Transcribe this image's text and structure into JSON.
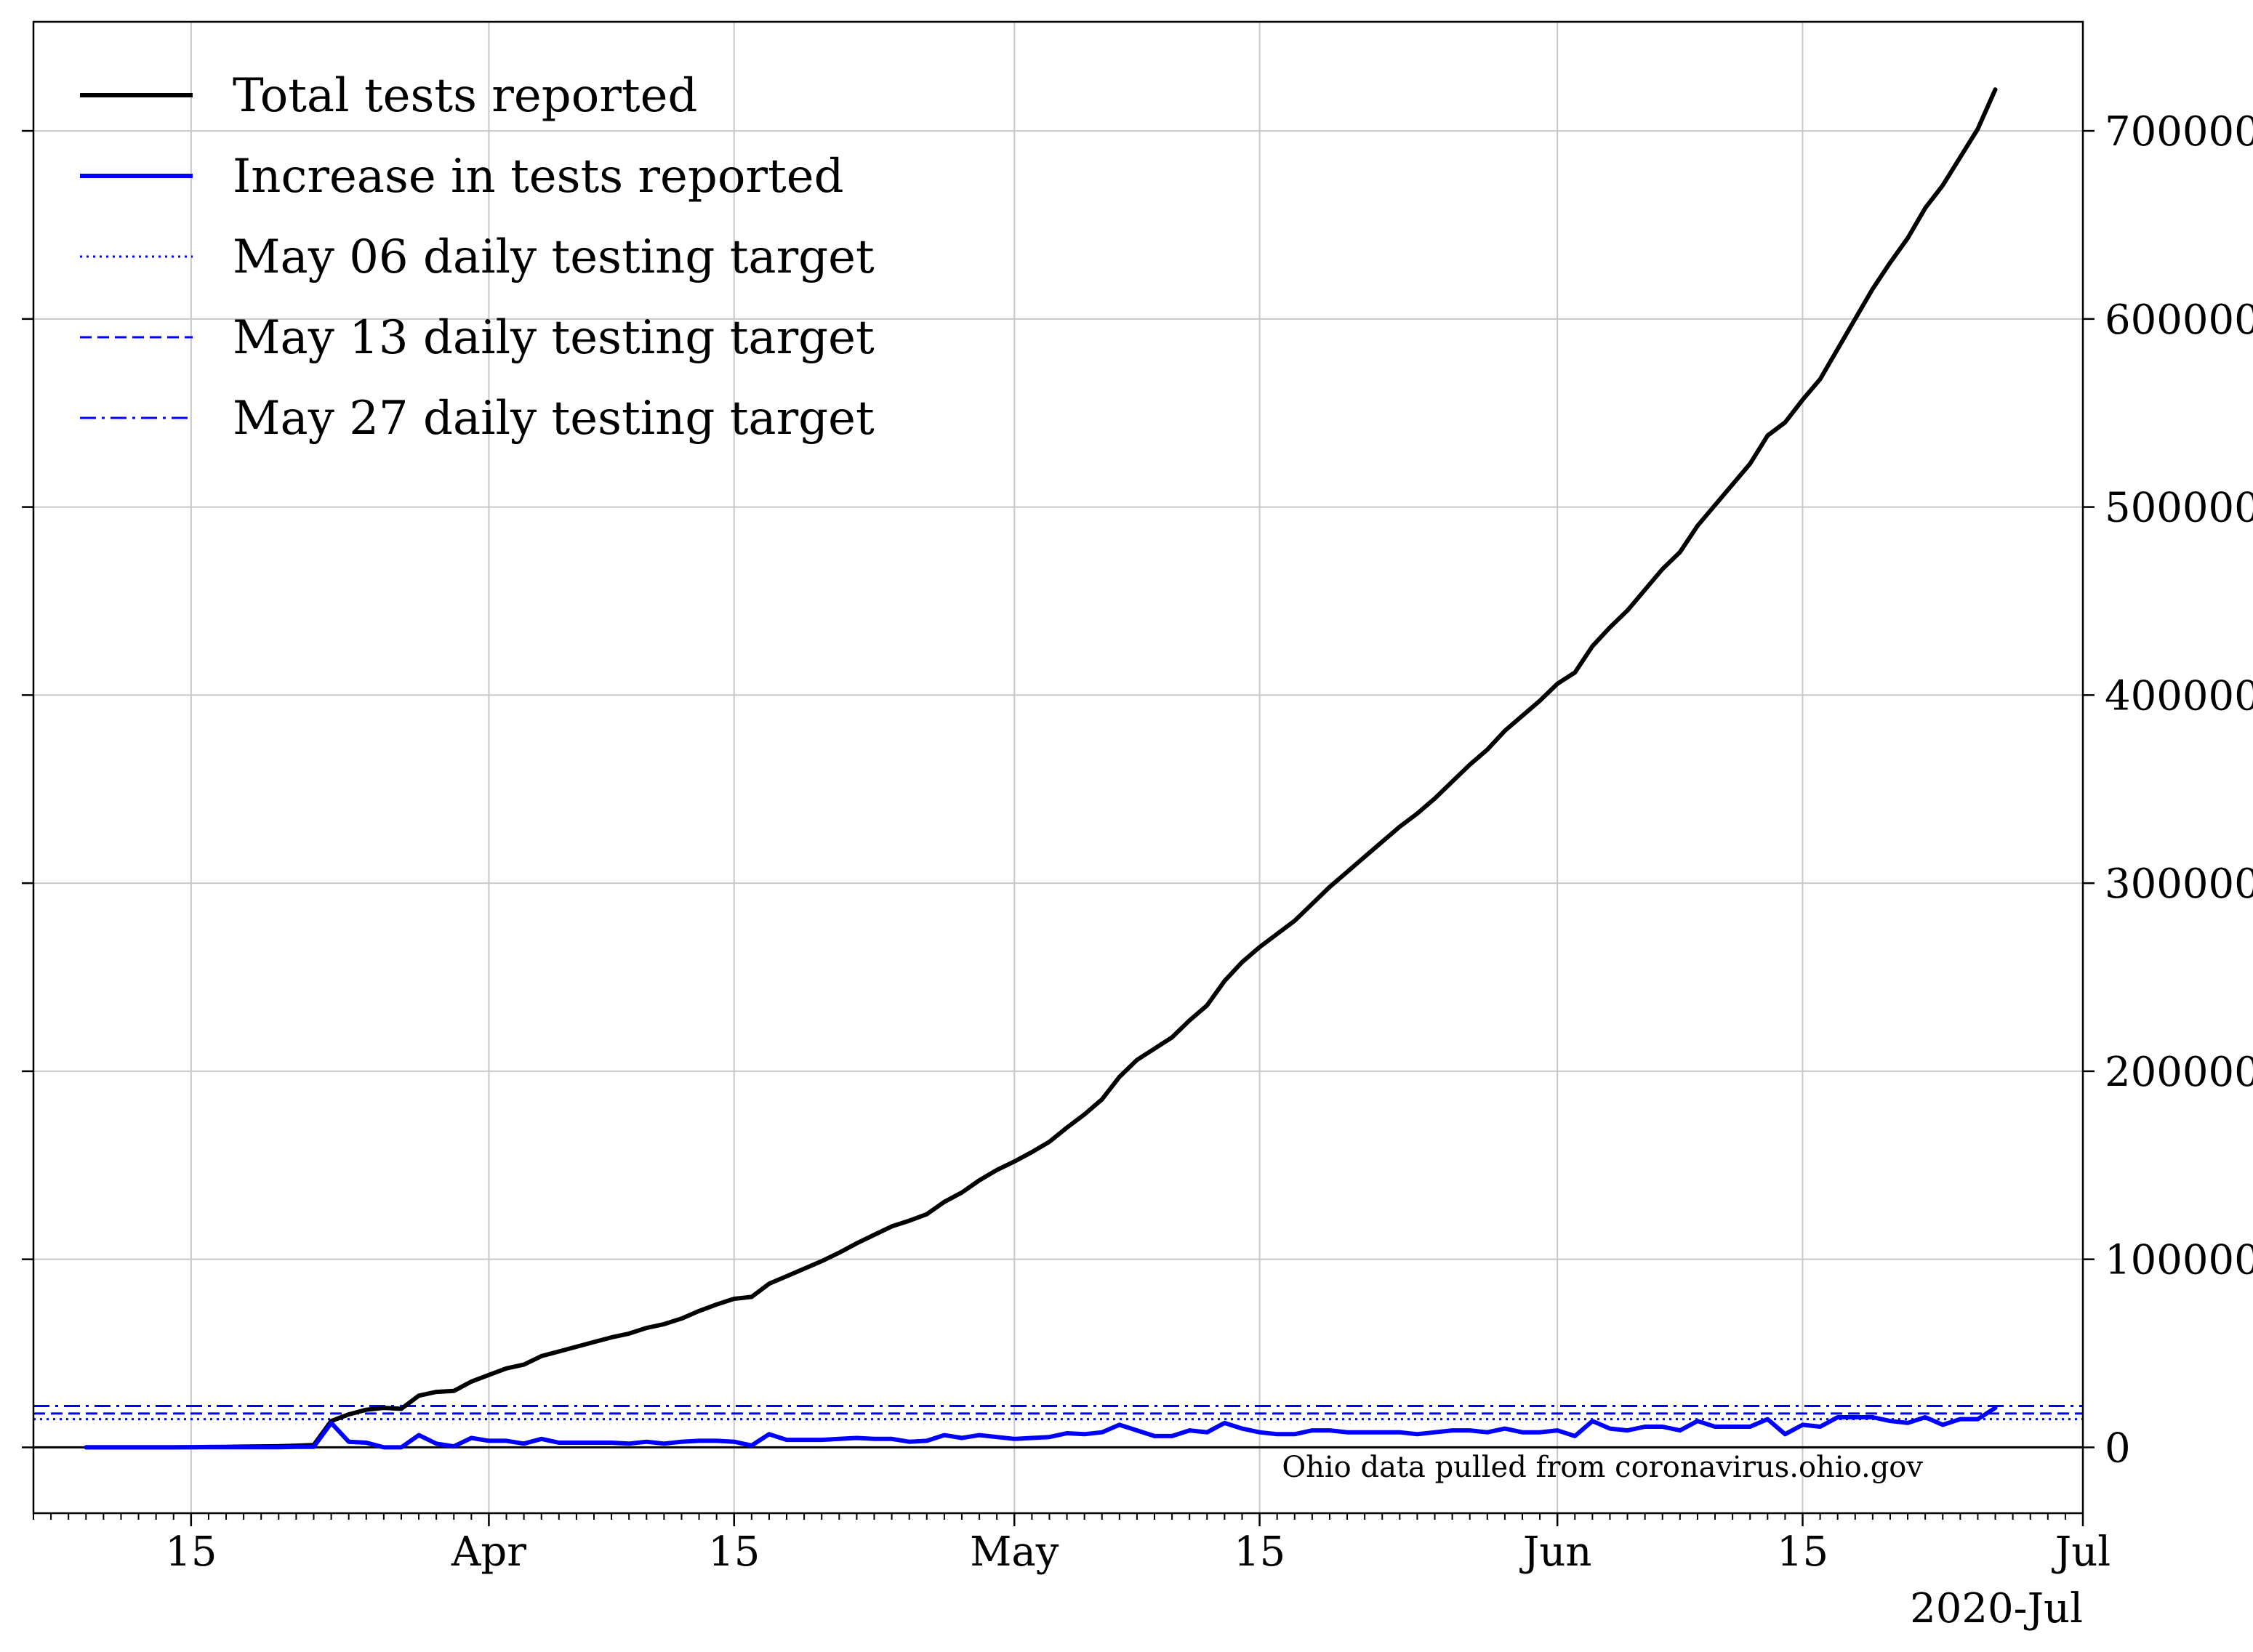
{
  "chart_data": {
    "type": "line",
    "title": "",
    "xlabel": "",
    "ylabel": "",
    "x_axis": {
      "type": "date",
      "range": [
        "2020-03-06",
        "2020-07-01"
      ],
      "major_ticks": [
        {
          "date": "2020-03-15",
          "label": "15"
        },
        {
          "date": "2020-04-01",
          "label": "Apr"
        },
        {
          "date": "2020-04-15",
          "label": "15"
        },
        {
          "date": "2020-05-01",
          "label": "May"
        },
        {
          "date": "2020-05-15",
          "label": "15"
        },
        {
          "date": "2020-06-01",
          "label": "Jun"
        },
        {
          "date": "2020-06-15",
          "label": "15"
        },
        {
          "date": "2020-07-01",
          "label": "Jul"
        }
      ],
      "offset_label": "2020-Jul",
      "minor_ticks": "daily"
    },
    "y_axis": {
      "position": "right",
      "range": [
        -35000,
        758000
      ],
      "ticks": [
        0,
        100000,
        200000,
        300000,
        400000,
        500000,
        600000,
        700000
      ],
      "tick_labels": [
        "0",
        "100000",
        "200000",
        "300000",
        "400000",
        "500000",
        "600000",
        "700000"
      ]
    },
    "grid": true,
    "legend_position": "upper-left",
    "series": [
      {
        "name": "Total tests reported",
        "color": "#000000",
        "style": "solid",
        "x": [
          "2020-03-09",
          "2020-03-10",
          "2020-03-11",
          "2020-03-12",
          "2020-03-13",
          "2020-03-14",
          "2020-03-15",
          "2020-03-16",
          "2020-03-17",
          "2020-03-18",
          "2020-03-19",
          "2020-03-20",
          "2020-03-21",
          "2020-03-22",
          "2020-03-23",
          "2020-03-24",
          "2020-03-25",
          "2020-03-26",
          "2020-03-27",
          "2020-03-28",
          "2020-03-29",
          "2020-03-30",
          "2020-03-31",
          "2020-04-01",
          "2020-04-02",
          "2020-04-03",
          "2020-04-04",
          "2020-04-05",
          "2020-04-06",
          "2020-04-07",
          "2020-04-08",
          "2020-04-09",
          "2020-04-10",
          "2020-04-11",
          "2020-04-12",
          "2020-04-13",
          "2020-04-14",
          "2020-04-15",
          "2020-04-16",
          "2020-04-17",
          "2020-04-18",
          "2020-04-19",
          "2020-04-20",
          "2020-04-21",
          "2020-04-22",
          "2020-04-23",
          "2020-04-24",
          "2020-04-25",
          "2020-04-26",
          "2020-04-27",
          "2020-04-28",
          "2020-04-29",
          "2020-04-30",
          "2020-05-01",
          "2020-05-02",
          "2020-05-03",
          "2020-05-04",
          "2020-05-05",
          "2020-05-06",
          "2020-05-07",
          "2020-05-08",
          "2020-05-09",
          "2020-05-10",
          "2020-05-11",
          "2020-05-12",
          "2020-05-13",
          "2020-05-14",
          "2020-05-15",
          "2020-05-16",
          "2020-05-17",
          "2020-05-18",
          "2020-05-19",
          "2020-05-20",
          "2020-05-21",
          "2020-05-22",
          "2020-05-23",
          "2020-05-24",
          "2020-05-25",
          "2020-05-26",
          "2020-05-27",
          "2020-05-28",
          "2020-05-29",
          "2020-05-30",
          "2020-05-31",
          "2020-06-01",
          "2020-06-02",
          "2020-06-03",
          "2020-06-04",
          "2020-06-05",
          "2020-06-06",
          "2020-06-07",
          "2020-06-08",
          "2020-06-09",
          "2020-06-10",
          "2020-06-11",
          "2020-06-12",
          "2020-06-13",
          "2020-06-14",
          "2020-06-15",
          "2020-06-16",
          "2020-06-17",
          "2020-06-18",
          "2020-06-19",
          "2020-06-20",
          "2020-06-21",
          "2020-06-22",
          "2020-06-23",
          "2020-06-24",
          "2020-06-25",
          "2020-06-26"
        ],
        "values": [
          0,
          0,
          0,
          0,
          0,
          0,
          100,
          200,
          300,
          400,
          500,
          600,
          900,
          1200,
          14000,
          17500,
          20000,
          21000,
          20500,
          27500,
          29500,
          30000,
          35000,
          38500,
          42000,
          44000,
          48500,
          51000,
          53500,
          56000,
          58500,
          60500,
          63500,
          65500,
          68500,
          72500,
          76000,
          79000,
          80000,
          87000,
          91000,
          95000,
          99000,
          103500,
          108500,
          113000,
          117500,
          120500,
          124000,
          130500,
          135500,
          142000,
          147500,
          152000,
          157000,
          162500,
          170000,
          177000,
          185000,
          197000,
          206000,
          212000,
          218000,
          227000,
          235000,
          248000,
          258000,
          266000,
          273000,
          280000,
          289000,
          298000,
          306000,
          314000,
          322000,
          330000,
          337000,
          345000,
          354000,
          363000,
          371000,
          381000,
          389000,
          397000,
          406000,
          412000,
          426000,
          436000,
          445000,
          456000,
          467000,
          476000,
          490000,
          501000,
          512000,
          523000,
          538000,
          545000,
          557000,
          568000,
          584000,
          600000,
          616000,
          630000,
          643000,
          659000,
          671000,
          686000,
          701000,
          722000
        ]
      },
      {
        "name": "Increase in tests reported",
        "color": "#0000ff",
        "style": "solid",
        "x": [
          "2020-03-09",
          "2020-03-10",
          "2020-03-11",
          "2020-03-12",
          "2020-03-13",
          "2020-03-14",
          "2020-03-15",
          "2020-03-16",
          "2020-03-17",
          "2020-03-18",
          "2020-03-19",
          "2020-03-20",
          "2020-03-21",
          "2020-03-22",
          "2020-03-23",
          "2020-03-24",
          "2020-03-25",
          "2020-03-26",
          "2020-03-27",
          "2020-03-28",
          "2020-03-29",
          "2020-03-30",
          "2020-03-31",
          "2020-04-01",
          "2020-04-02",
          "2020-04-03",
          "2020-04-04",
          "2020-04-05",
          "2020-04-06",
          "2020-04-07",
          "2020-04-08",
          "2020-04-09",
          "2020-04-10",
          "2020-04-11",
          "2020-04-12",
          "2020-04-13",
          "2020-04-14",
          "2020-04-15",
          "2020-04-16",
          "2020-04-17",
          "2020-04-18",
          "2020-04-19",
          "2020-04-20",
          "2020-04-21",
          "2020-04-22",
          "2020-04-23",
          "2020-04-24",
          "2020-04-25",
          "2020-04-26",
          "2020-04-27",
          "2020-04-28",
          "2020-04-29",
          "2020-04-30",
          "2020-05-01",
          "2020-05-02",
          "2020-05-03",
          "2020-05-04",
          "2020-05-05",
          "2020-05-06",
          "2020-05-07",
          "2020-05-08",
          "2020-05-09",
          "2020-05-10",
          "2020-05-11",
          "2020-05-12",
          "2020-05-13",
          "2020-05-14",
          "2020-05-15",
          "2020-05-16",
          "2020-05-17",
          "2020-05-18",
          "2020-05-19",
          "2020-05-20",
          "2020-05-21",
          "2020-05-22",
          "2020-05-23",
          "2020-05-24",
          "2020-05-25",
          "2020-05-26",
          "2020-05-27",
          "2020-05-28",
          "2020-05-29",
          "2020-05-30",
          "2020-05-31",
          "2020-06-01",
          "2020-06-02",
          "2020-06-03",
          "2020-06-04",
          "2020-06-05",
          "2020-06-06",
          "2020-06-07",
          "2020-06-08",
          "2020-06-09",
          "2020-06-10",
          "2020-06-11",
          "2020-06-12",
          "2020-06-13",
          "2020-06-14",
          "2020-06-15",
          "2020-06-16",
          "2020-06-17",
          "2020-06-18",
          "2020-06-19",
          "2020-06-20",
          "2020-06-21",
          "2020-06-22",
          "2020-06-23",
          "2020-06-24",
          "2020-06-25",
          "2020-06-26"
        ],
        "values": [
          0,
          0,
          0,
          0,
          0,
          0,
          100,
          100,
          100,
          100,
          100,
          100,
          300,
          300,
          13000,
          3000,
          2500,
          0,
          0,
          6500,
          2000,
          500,
          5000,
          3500,
          3500,
          2000,
          4500,
          2500,
          2500,
          2500,
          2500,
          2000,
          3000,
          2000,
          3000,
          3500,
          3500,
          3000,
          1000,
          7000,
          4000,
          4000,
          4000,
          4500,
          5000,
          4500,
          4500,
          3000,
          3500,
          6500,
          5000,
          6500,
          5500,
          4500,
          5000,
          5500,
          7500,
          7000,
          8000,
          12000,
          9000,
          6000,
          6000,
          9000,
          8000,
          13000,
          10000,
          8000,
          7000,
          7000,
          9000,
          9000,
          8000,
          8000,
          8000,
          8000,
          7000,
          8000,
          9000,
          9000,
          8000,
          10000,
          8000,
          8000,
          9000,
          6000,
          14000,
          10000,
          9000,
          11000,
          11000,
          9000,
          14000,
          11000,
          11000,
          11000,
          15000,
          7000,
          12000,
          11000,
          16000,
          16000,
          16000,
          14000,
          13000,
          16000,
          12000,
          15000,
          15000,
          21000
        ]
      }
    ],
    "reference_lines": [
      {
        "name": "May 06 daily testing target",
        "value": 15000,
        "color": "#0000ff",
        "style": "dotted"
      },
      {
        "name": "May 13 daily testing target",
        "value": 18000,
        "color": "#0000ff",
        "style": "dashed"
      },
      {
        "name": "May 27 daily testing target",
        "value": 22000,
        "color": "#0000ff",
        "style": "dashdot"
      }
    ],
    "annotations": [
      {
        "text": "Ohio data pulled from coronavirus.ohio.gov",
        "position": "lower-right"
      }
    ]
  }
}
